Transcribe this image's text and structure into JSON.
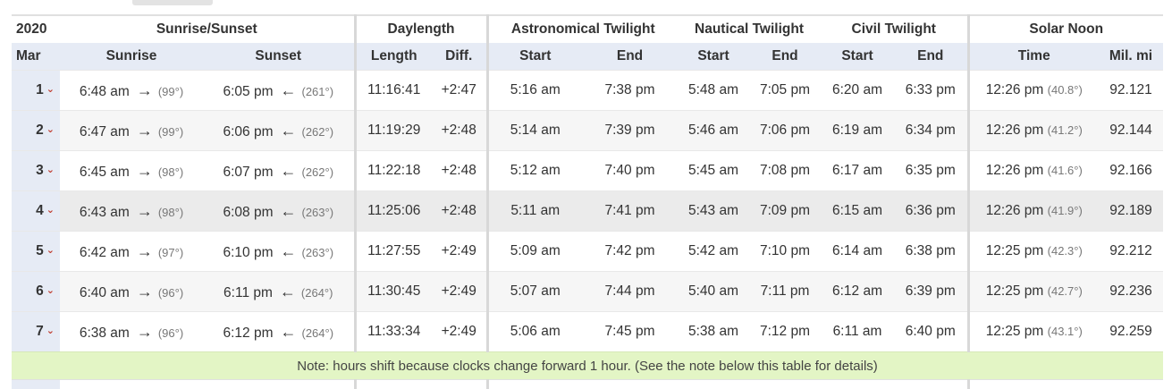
{
  "header": {
    "year": "2020",
    "groups": {
      "sunrise_sunset": "Sunrise/Sunset",
      "daylength": "Daylength",
      "astronomical": "Astronomical Twilight",
      "nautical": "Nautical Twilight",
      "civil": "Civil Twilight",
      "solar_noon": "Solar Noon"
    },
    "month": "Mar",
    "columns": {
      "sunrise": "Sunrise",
      "sunset": "Sunset",
      "length": "Length",
      "diff": "Diff.",
      "astro_start": "Start",
      "astro_end": "End",
      "naut_start": "Start",
      "naut_end": "End",
      "civil_start": "Start",
      "civil_end": "End",
      "noon_time": "Time",
      "distance": "Mil. mi"
    }
  },
  "arrows": {
    "sunrise": "→",
    "sunset": "←"
  },
  "chevron": "⌄",
  "rows": [
    {
      "day": "1",
      "sunrise": "6:48 am",
      "sunrise_deg": "(99°)",
      "sunset": "6:05 pm",
      "sunset_deg": "(261°)",
      "length": "11:16:41",
      "diff": "+2:47",
      "astro_start": "5:16 am",
      "astro_end": "7:38 pm",
      "naut_start": "5:48 am",
      "naut_end": "7:05 pm",
      "civil_start": "6:20 am",
      "civil_end": "6:33 pm",
      "noon": "12:26 pm",
      "noon_deg": "(40.8°)",
      "distance": "92.121"
    },
    {
      "day": "2",
      "sunrise": "6:47 am",
      "sunrise_deg": "(99°)",
      "sunset": "6:06 pm",
      "sunset_deg": "(262°)",
      "length": "11:19:29",
      "diff": "+2:48",
      "astro_start": "5:14 am",
      "astro_end": "7:39 pm",
      "naut_start": "5:46 am",
      "naut_end": "7:06 pm",
      "civil_start": "6:19 am",
      "civil_end": "6:34 pm",
      "noon": "12:26 pm",
      "noon_deg": "(41.2°)",
      "distance": "92.144"
    },
    {
      "day": "3",
      "sunrise": "6:45 am",
      "sunrise_deg": "(98°)",
      "sunset": "6:07 pm",
      "sunset_deg": "(262°)",
      "length": "11:22:18",
      "diff": "+2:48",
      "astro_start": "5:12 am",
      "astro_end": "7:40 pm",
      "naut_start": "5:45 am",
      "naut_end": "7:08 pm",
      "civil_start": "6:17 am",
      "civil_end": "6:35 pm",
      "noon": "12:26 pm",
      "noon_deg": "(41.6°)",
      "distance": "92.166"
    },
    {
      "day": "4",
      "sunrise": "6:43 am",
      "sunrise_deg": "(98°)",
      "sunset": "6:08 pm",
      "sunset_deg": "(263°)",
      "length": "11:25:06",
      "diff": "+2:48",
      "astro_start": "5:11 am",
      "astro_end": "7:41 pm",
      "naut_start": "5:43 am",
      "naut_end": "7:09 pm",
      "civil_start": "6:15 am",
      "civil_end": "6:36 pm",
      "noon": "12:26 pm",
      "noon_deg": "(41.9°)",
      "distance": "92.189"
    },
    {
      "day": "5",
      "sunrise": "6:42 am",
      "sunrise_deg": "(97°)",
      "sunset": "6:10 pm",
      "sunset_deg": "(263°)",
      "length": "11:27:55",
      "diff": "+2:49",
      "astro_start": "5:09 am",
      "astro_end": "7:42 pm",
      "naut_start": "5:42 am",
      "naut_end": "7:10 pm",
      "civil_start": "6:14 am",
      "civil_end": "6:38 pm",
      "noon": "12:25 pm",
      "noon_deg": "(42.3°)",
      "distance": "92.212"
    },
    {
      "day": "6",
      "sunrise": "6:40 am",
      "sunrise_deg": "(96°)",
      "sunset": "6:11 pm",
      "sunset_deg": "(264°)",
      "length": "11:30:45",
      "diff": "+2:49",
      "astro_start": "5:07 am",
      "astro_end": "7:44 pm",
      "naut_start": "5:40 am",
      "naut_end": "7:11 pm",
      "civil_start": "6:12 am",
      "civil_end": "6:39 pm",
      "noon": "12:25 pm",
      "noon_deg": "(42.7°)",
      "distance": "92.236"
    },
    {
      "day": "7",
      "sunrise": "6:38 am",
      "sunrise_deg": "(96°)",
      "sunset": "6:12 pm",
      "sunset_deg": "(264°)",
      "length": "11:33:34",
      "diff": "+2:49",
      "astro_start": "5:06 am",
      "astro_end": "7:45 pm",
      "naut_start": "5:38 am",
      "naut_end": "7:12 pm",
      "civil_start": "6:11 am",
      "civil_end": "6:40 pm",
      "noon": "12:25 pm",
      "noon_deg": "(43.1°)",
      "distance": "92.259"
    }
  ],
  "highlight_row": "4",
  "note": "Note: hours shift because clocks change forward 1 hour. (See the note below this table for details)"
}
